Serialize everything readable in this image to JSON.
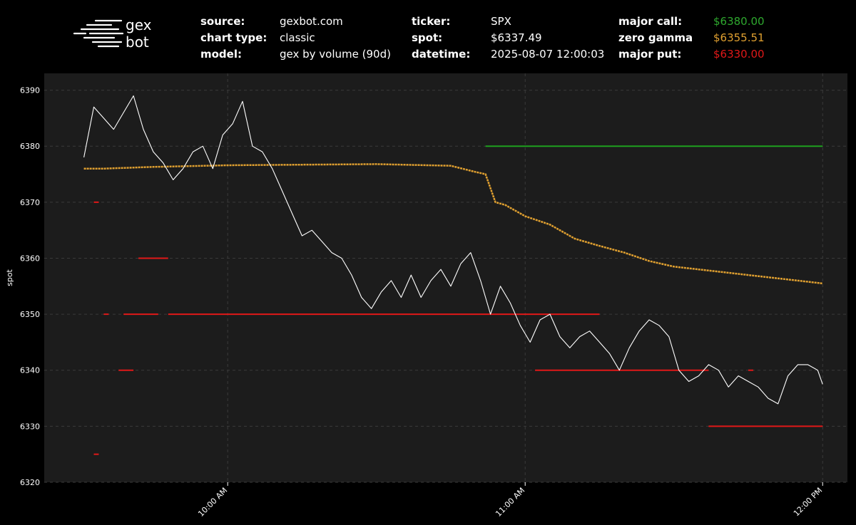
{
  "logo": {
    "line1": "gex",
    "line2": "bot"
  },
  "header": {
    "col1": [
      {
        "label": "source:",
        "value": "gexbot.com"
      },
      {
        "label": "chart type:",
        "value": "classic"
      },
      {
        "label": "model:",
        "value": "gex by volume (90d)"
      }
    ],
    "col2": [
      {
        "label": "ticker:",
        "value": "SPX"
      },
      {
        "label": "spot:",
        "value": "$6337.49"
      },
      {
        "label": "datetime:",
        "value": "2025-08-07 12:00:03"
      }
    ],
    "col3": [
      {
        "label": "major call:",
        "value": "$6380.00",
        "color": "#2ea82e"
      },
      {
        "label": "zero gamma",
        "value": "$6355.51",
        "color": "#e0a030"
      },
      {
        "label": "major put:",
        "value": "$6330.00",
        "color": "#e01818"
      }
    ]
  },
  "colors": {
    "background": "#000000",
    "plot_bg": "#1c1c1c",
    "spot": "#ffffff",
    "major_call": "#1ea01e",
    "zero_gamma": "#e0a030",
    "major_put": "#e01818"
  },
  "chart_data": {
    "type": "line",
    "ylabel": "spot",
    "ylim": [
      6320,
      6390
    ],
    "yticks": [
      6320,
      6330,
      6340,
      6350,
      6360,
      6370,
      6380,
      6390
    ],
    "xlim": [
      "09:31",
      "12:00"
    ],
    "xticks": [
      {
        "time": "10:00",
        "label": "10:00 AM"
      },
      {
        "time": "11:00",
        "label": "11:00 AM"
      },
      {
        "time": "12:00",
        "label": "12:00 PM"
      }
    ],
    "grid": true,
    "series": [
      {
        "key": "spot",
        "x": [
          "09:31",
          "09:33",
          "09:35",
          "09:37",
          "09:39",
          "09:41",
          "09:43",
          "09:45",
          "09:47",
          "09:49",
          "09:51",
          "09:53",
          "09:55",
          "09:57",
          "09:59",
          "10:01",
          "10:03",
          "10:05",
          "10:07",
          "10:09",
          "10:11",
          "10:13",
          "10:15",
          "10:17",
          "10:19",
          "10:21",
          "10:23",
          "10:25",
          "10:27",
          "10:29",
          "10:31",
          "10:33",
          "10:35",
          "10:37",
          "10:39",
          "10:41",
          "10:43",
          "10:45",
          "10:47",
          "10:49",
          "10:51",
          "10:53",
          "10:55",
          "10:57",
          "10:59",
          "11:01",
          "11:03",
          "11:05",
          "11:07",
          "11:09",
          "11:11",
          "11:13",
          "11:15",
          "11:17",
          "11:19",
          "11:21",
          "11:23",
          "11:25",
          "11:27",
          "11:29",
          "11:31",
          "11:33",
          "11:35",
          "11:37",
          "11:39",
          "11:41",
          "11:43",
          "11:45",
          "11:47",
          "11:49",
          "11:51",
          "11:53",
          "11:55",
          "11:57",
          "11:59",
          "12:00"
        ],
        "y": [
          6378,
          6387,
          6385,
          6383,
          6386,
          6389,
          6383,
          6379,
          6377,
          6374,
          6376,
          6379,
          6380,
          6376,
          6382,
          6384,
          6388,
          6380,
          6379,
          6376,
          6372,
          6368,
          6364,
          6365,
          6363,
          6361,
          6360,
          6357,
          6353,
          6351,
          6354,
          6356,
          6353,
          6357,
          6353,
          6356,
          6358,
          6355,
          6359,
          6361,
          6356,
          6350,
          6355,
          6352,
          6348,
          6345,
          6349,
          6350,
          6346,
          6344,
          6346,
          6347,
          6345,
          6343,
          6340,
          6344,
          6347,
          6349,
          6348,
          6346,
          6340,
          6338,
          6339,
          6341,
          6340,
          6337,
          6339,
          6338,
          6337,
          6335,
          6334,
          6339,
          6341,
          6341,
          6340,
          6337.5
        ]
      },
      {
        "key": "zero_gamma",
        "x": [
          "09:31",
          "09:35",
          "09:45",
          "10:00",
          "10:15",
          "10:30",
          "10:45",
          "10:50",
          "10:52",
          "10:54",
          "10:56",
          "11:00",
          "11:05",
          "11:10",
          "11:15",
          "11:20",
          "11:25",
          "11:30",
          "11:35",
          "11:40",
          "11:45",
          "11:50",
          "11:55",
          "12:00"
        ],
        "y": [
          6376,
          6376,
          6376.3,
          6376.6,
          6376.7,
          6376.8,
          6376.5,
          6375.4,
          6375,
          6370,
          6369.5,
          6367.5,
          6366,
          6363.5,
          6362.2,
          6361,
          6359.5,
          6358.5,
          6358,
          6357.5,
          6357,
          6356.5,
          6356,
          6355.5
        ]
      },
      {
        "key": "major_call",
        "x": [
          "10:52",
          "12:00"
        ],
        "y": [
          6380,
          6380
        ]
      },
      {
        "key": "major_put",
        "segments": [
          {
            "x": [
              "09:35",
              "09:36"
            ],
            "y": 6350
          },
          {
            "x": [
              "09:39",
              "09:46"
            ],
            "y": 6350
          },
          {
            "x": [
              "09:48",
              "11:15"
            ],
            "y": 6350
          },
          {
            "x": [
              "09:42",
              "09:48"
            ],
            "y": 6360
          },
          {
            "x": [
              "09:38",
              "09:41"
            ],
            "y": 6340
          },
          {
            "x": [
              "09:33",
              "09:34"
            ],
            "y": 6325
          },
          {
            "x": [
              "09:33",
              "09:34"
            ],
            "y": 6370
          },
          {
            "x": [
              "11:02",
              "11:37"
            ],
            "y": 6340
          },
          {
            "x": [
              "11:45",
              "11:46"
            ],
            "y": 6340
          },
          {
            "x": [
              "11:37",
              "12:00"
            ],
            "y": 6330
          }
        ]
      }
    ]
  }
}
